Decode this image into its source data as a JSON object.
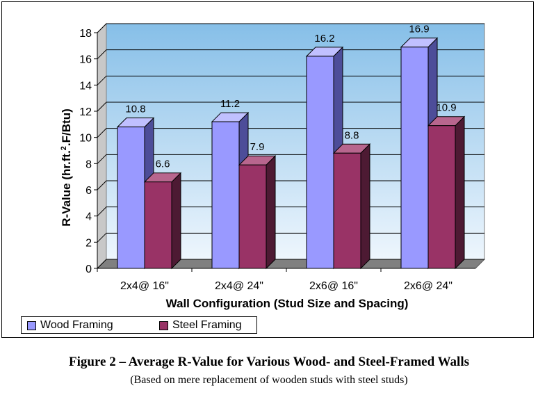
{
  "chart_data": {
    "type": "bar",
    "categories": [
      "2x4@ 16\"",
      "2x4@ 24\"",
      "2x6@ 16\"",
      "2x6@ 24\""
    ],
    "series": [
      {
        "name": "Wood Framing",
        "values": [
          10.8,
          11.2,
          16.2,
          16.9
        ],
        "labels": [
          "10.8",
          "11.2",
          "16.2",
          "16.9"
        ],
        "color": "#9999ff",
        "side_color": "#4d4d99",
        "top_color": "#c0c0ff"
      },
      {
        "name": "Steel Framing",
        "values": [
          6.6,
          7.9,
          8.8,
          10.9
        ],
        "labels": [
          "6.6",
          "7.9",
          "8.8",
          "10.9"
        ],
        "color": "#993366",
        "side_color": "#4d1a33",
        "top_color": "#b8668e"
      }
    ],
    "xlabel": "Wall Configuration (Stud Size and Spacing)",
    "ylabel_main": "R-Value (hr.ft.",
    "ylabel_sup": "2",
    "ylabel_end": ".F/Btu)",
    "ylim": [
      0,
      18
    ],
    "yticks": [
      "0",
      "2",
      "4",
      "6",
      "8",
      "10",
      "12",
      "14",
      "16",
      "18"
    ],
    "grid": true,
    "three_d": true,
    "legend_position": "bottom-left"
  },
  "caption": "Figure 2 – Average R-Value for Various Wood- and Steel-Framed Walls",
  "subcaption": "(Based on mere replacement of wooden studs with steel studs)"
}
